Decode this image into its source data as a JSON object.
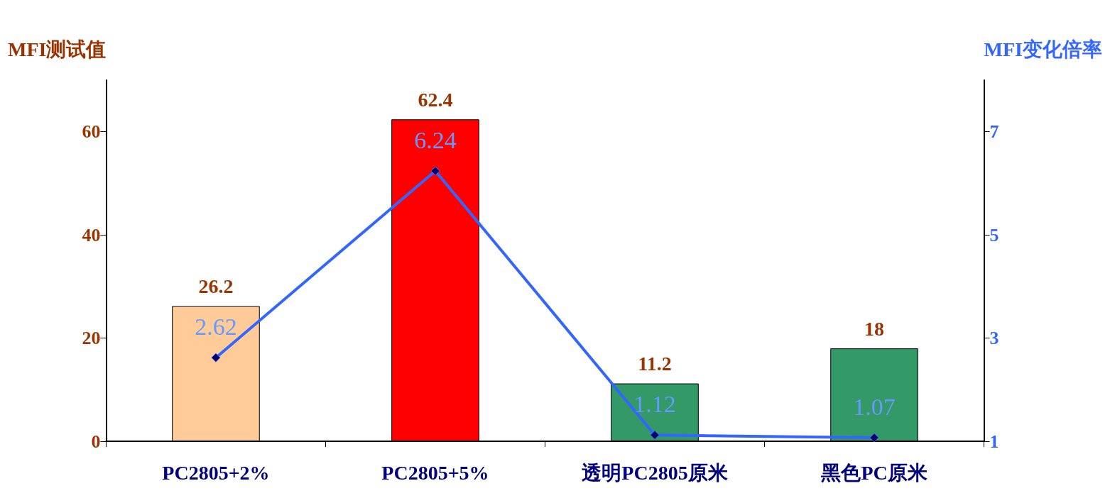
{
  "chart_data": {
    "type": "bar",
    "ylabel": "MFI测试值",
    "y2label": "MFI变化倍率",
    "categories": [
      "PC2805+2%",
      "PC2805+5%",
      "透明PC2805原米",
      "黑色PC原米"
    ],
    "series": [
      {
        "colors": [
          "#ffcc99",
          "#ff0000",
          "#339966",
          "#339966"
        ],
        "values": [
          26.2,
          62.4,
          11.2,
          18
        ]
      },
      {
        "type": "line",
        "axis": "y2",
        "color": "#3366ff",
        "values": [
          2.62,
          6.24,
          1.12,
          1.07
        ]
      }
    ],
    "ylim": [
      0,
      70
    ],
    "yticks": [
      0,
      20,
      40,
      60
    ],
    "y2lim": [
      1,
      8
    ],
    "y2ticks": [
      1,
      3,
      5,
      7
    ],
    "data_labels": true,
    "marker": "diamond",
    "grid": false
  }
}
